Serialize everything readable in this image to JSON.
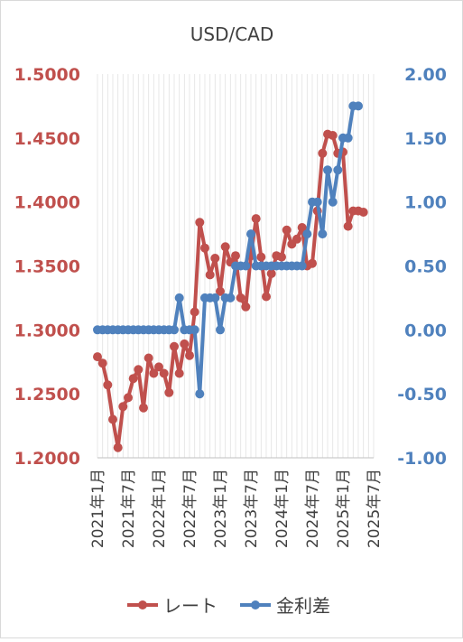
{
  "chart_data": {
    "type": "line",
    "title": "USD/CAD",
    "x_tick_labels": [
      "2021年1月",
      "2021年7月",
      "2022年1月",
      "2022年7月",
      "2023年1月",
      "2023年7月",
      "2024年1月",
      "2024年7月",
      "2025年1月",
      "2025年7月"
    ],
    "y_left": {
      "ylim": [
        1.2,
        1.5
      ],
      "ticks": [
        "1.2000",
        "1.2500",
        "1.3000",
        "1.3500",
        "1.4000",
        "1.4500",
        "1.5000"
      ],
      "color": "#c0504d"
    },
    "y_right": {
      "ylim": [
        -1.0,
        2.0
      ],
      "ticks": [
        "-1.00",
        "-0.50",
        "0.00",
        "0.50",
        "1.00",
        "1.50",
        "2.00"
      ],
      "color": "#4f81bd"
    },
    "grid": "vertical",
    "legend_position": "bottom",
    "series": [
      {
        "name": "レート",
        "axis": "left",
        "color": "#c0504d",
        "x": [
          "2021-01",
          "2021-02",
          "2021-03",
          "2021-04",
          "2021-05",
          "2021-06",
          "2021-07",
          "2021-08",
          "2021-09",
          "2021-10",
          "2021-11",
          "2021-12",
          "2022-01",
          "2022-02",
          "2022-03",
          "2022-04",
          "2022-05",
          "2022-06",
          "2022-07",
          "2022-08",
          "2022-09",
          "2022-10",
          "2022-11",
          "2022-12",
          "2023-01",
          "2023-02",
          "2023-03",
          "2023-04",
          "2023-05",
          "2023-06",
          "2023-07",
          "2023-08",
          "2023-09",
          "2023-10",
          "2023-11",
          "2023-12",
          "2024-01",
          "2024-02",
          "2024-03",
          "2024-04",
          "2024-05",
          "2024-06",
          "2024-07",
          "2024-08",
          "2024-09",
          "2024-10",
          "2024-11",
          "2024-12",
          "2025-01",
          "2025-02",
          "2025-03",
          "2025-04",
          "2025-05"
        ],
        "values": [
          1.279,
          1.274,
          1.257,
          1.23,
          1.208,
          1.24,
          1.247,
          1.262,
          1.269,
          1.239,
          1.278,
          1.266,
          1.271,
          1.266,
          1.251,
          1.287,
          1.266,
          1.289,
          1.28,
          1.314,
          1.384,
          1.364,
          1.343,
          1.356,
          1.33,
          1.365,
          1.353,
          1.358,
          1.325,
          1.318,
          1.358,
          1.387,
          1.357,
          1.326,
          1.344,
          1.358,
          1.357,
          1.378,
          1.367,
          1.371,
          1.38,
          1.35,
          1.352,
          1.393,
          1.438,
          1.453,
          1.452,
          1.438,
          1.439,
          1.381,
          1.393,
          1.393,
          1.392
        ],
        "x_extent": [
          "2021-01",
          "2025-05"
        ]
      },
      {
        "name": "金利差",
        "axis": "right",
        "color": "#4f81bd",
        "x": [
          "2021-01",
          "2021-02",
          "2021-03",
          "2021-04",
          "2021-05",
          "2021-06",
          "2021-07",
          "2021-08",
          "2021-09",
          "2021-10",
          "2021-11",
          "2021-12",
          "2022-01",
          "2022-02",
          "2022-03",
          "2022-04",
          "2022-05",
          "2022-06",
          "2022-07",
          "2022-08",
          "2022-09",
          "2022-10",
          "2022-11",
          "2022-12",
          "2023-01",
          "2023-02",
          "2023-03",
          "2023-04",
          "2023-05",
          "2023-06",
          "2023-07",
          "2023-08",
          "2023-09",
          "2023-10",
          "2023-11",
          "2023-12",
          "2024-01",
          "2024-02",
          "2024-03",
          "2024-04",
          "2024-05",
          "2024-06",
          "2024-07",
          "2024-08",
          "2024-09",
          "2024-10",
          "2024-11",
          "2024-12",
          "2025-01",
          "2025-02",
          "2025-03",
          "2025-04"
        ],
        "values": [
          0,
          0,
          0,
          0,
          0,
          0,
          0,
          0,
          0,
          0,
          0,
          0,
          0,
          0,
          0,
          0,
          0.25,
          0,
          0,
          0,
          -0.5,
          0.25,
          0.25,
          0.25,
          0,
          0.25,
          0.25,
          0.5,
          0.5,
          0.5,
          0.75,
          0.5,
          0.5,
          0.5,
          0.5,
          0.5,
          0.5,
          0.5,
          0.5,
          0.5,
          0.5,
          0.75,
          1.0,
          1.0,
          0.75,
          1.25,
          1.0,
          1.25,
          1.5,
          1.5,
          1.75,
          1.75
        ],
        "x_extent": [
          "2021-01",
          "2025-04"
        ]
      }
    ]
  }
}
